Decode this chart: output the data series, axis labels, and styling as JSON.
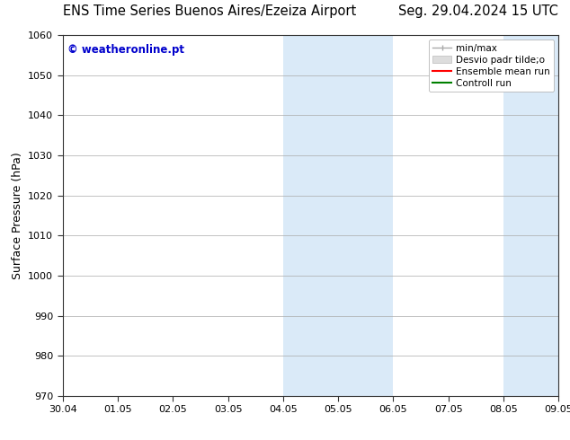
{
  "title_left": "ENS Time Series Buenos Aires/Ezeiza Airport",
  "title_right": "Seg. 29.04.2024 15 UTC",
  "ylabel": "Surface Pressure (hPa)",
  "xlabel_ticks": [
    "30.04",
    "01.05",
    "02.05",
    "03.05",
    "04.05",
    "05.05",
    "06.05",
    "07.05",
    "08.05",
    "09.05"
  ],
  "ylim": [
    970,
    1060
  ],
  "yticks": [
    970,
    980,
    990,
    1000,
    1010,
    1020,
    1030,
    1040,
    1050,
    1060
  ],
  "xlim": [
    0,
    9
  ],
  "shaded_regions": [
    {
      "xmin": 4.0,
      "xmax": 6.0,
      "color": "#daeaf8"
    },
    {
      "xmin": 8.0,
      "xmax": 9.0,
      "color": "#daeaf8"
    }
  ],
  "watermark_text": "© weatheronline.pt",
  "watermark_color": "#0000cc",
  "bg_color": "#ffffff",
  "grid_color": "#aaaaaa",
  "title_fontsize": 10.5,
  "tick_fontsize": 8,
  "ylabel_fontsize": 9,
  "legend_fontsize": 7.5
}
